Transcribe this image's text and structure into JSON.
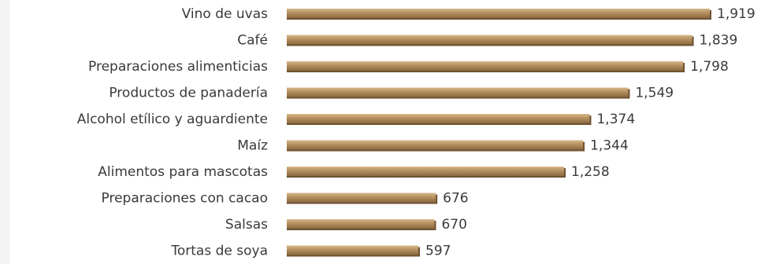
{
  "chart_data": {
    "type": "bar",
    "orientation": "horizontal",
    "title": "",
    "xlabel": "",
    "ylabel": "",
    "categories": [
      "Vino de uvas",
      "Café",
      "Preparaciones alimenticias",
      "Productos de panadería",
      "Alcohol etílico y aguardiente",
      "Maíz",
      "Alimentos para mascotas",
      "Preparaciones con cacao",
      "Salsas",
      "Tortas de soya"
    ],
    "values": [
      1919,
      1839,
      1798,
      1549,
      1374,
      1344,
      1258,
      676,
      670,
      597
    ],
    "value_labels": [
      "1,919",
      "1,839",
      "1,798",
      "1,549",
      "1,374",
      "1,344",
      "1,258",
      "676",
      "670",
      "597"
    ],
    "xlim": [
      0,
      1919
    ],
    "grid": false,
    "legend": "none",
    "bar_color": "#b58f5f",
    "bar_highlight_color": "#d6b88a",
    "bar_shadow_color": "#6e5230"
  }
}
